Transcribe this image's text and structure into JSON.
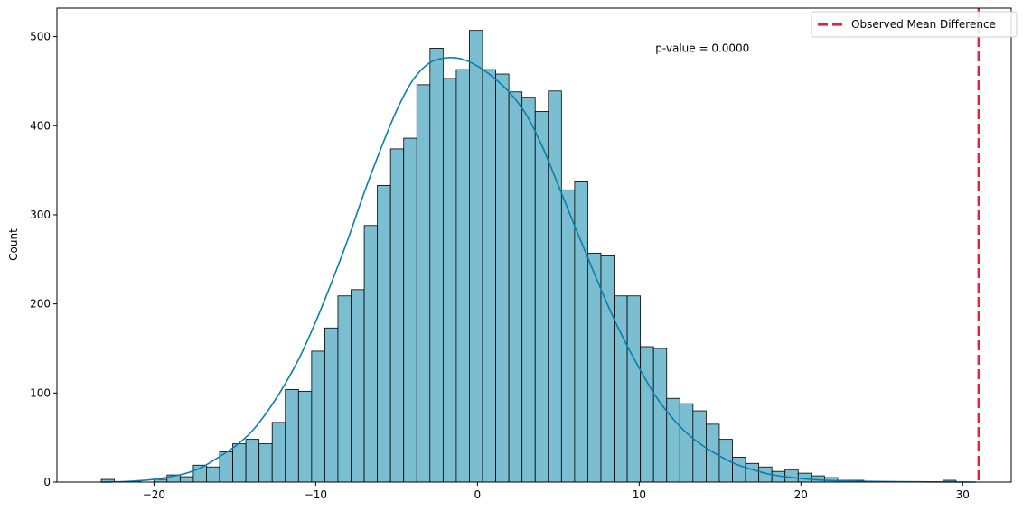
{
  "chart_data": {
    "type": "bar",
    "title": "",
    "xlabel": "",
    "ylabel": "Count",
    "xlim": [
      -26,
      33
    ],
    "ylim": [
      0,
      532
    ],
    "xticks": [
      -20,
      -10,
      0,
      10,
      20,
      30
    ],
    "xtick_labels": [
      "−20",
      "−10",
      "0",
      "10",
      "20",
      "30"
    ],
    "yticks": [
      0,
      100,
      200,
      300,
      400,
      500
    ],
    "ytick_labels": [
      "0",
      "100",
      "200",
      "300",
      "400",
      "500"
    ],
    "grid": false,
    "bins": {
      "start": -23.26,
      "width": 0.813,
      "counts": [
        3,
        0,
        1,
        0,
        3,
        8,
        6,
        19,
        17,
        34,
        43,
        48,
        43,
        67,
        104,
        102,
        147,
        173,
        209,
        216,
        288,
        333,
        374,
        386,
        446,
        487,
        453,
        463,
        507,
        463,
        458,
        438,
        432,
        416,
        439,
        328,
        337,
        257,
        254,
        209,
        209,
        152,
        150,
        94,
        88,
        80,
        65,
        48,
        28,
        21,
        17,
        12,
        14,
        10,
        7,
        5,
        2,
        2,
        1,
        0,
        0,
        0,
        0,
        0,
        2
      ]
    },
    "kde": {
      "x": [
        -23.3,
        -22,
        -21,
        -20,
        -19,
        -18,
        -17,
        -16,
        -15,
        -14,
        -13,
        -12,
        -11,
        -10,
        -9,
        -8,
        -7,
        -6,
        -5,
        -4,
        -3,
        -2,
        -1,
        0,
        1,
        2,
        3,
        4,
        5,
        6,
        7,
        8,
        9,
        10,
        11,
        12,
        13,
        14,
        15,
        16,
        17,
        18,
        19,
        20,
        21,
        22,
        24,
        26,
        28,
        30,
        30.8
      ],
      "y": [
        0,
        0.5,
        1.5,
        3,
        6,
        10,
        17,
        28,
        40,
        56,
        79,
        107,
        140,
        180,
        225,
        273,
        325,
        373,
        417,
        451,
        470,
        476,
        475,
        467,
        454,
        437,
        413,
        377,
        333,
        288,
        244,
        201,
        162,
        128,
        97,
        73,
        54,
        40,
        29,
        20,
        14,
        9,
        6,
        4,
        2.5,
        1.6,
        0.8,
        0.4,
        0.2,
        0.1,
        0
      ]
    },
    "bar_color": "#7bbed2",
    "kde_color": "#0b7fa8",
    "observed_line": {
      "x": 31,
      "color": "#e8213c",
      "label": "Observed Mean Difference"
    },
    "annotation": {
      "text": "p-value = 0.0000",
      "x": 11,
      "y": 483
    },
    "legend_position": "upper right"
  }
}
